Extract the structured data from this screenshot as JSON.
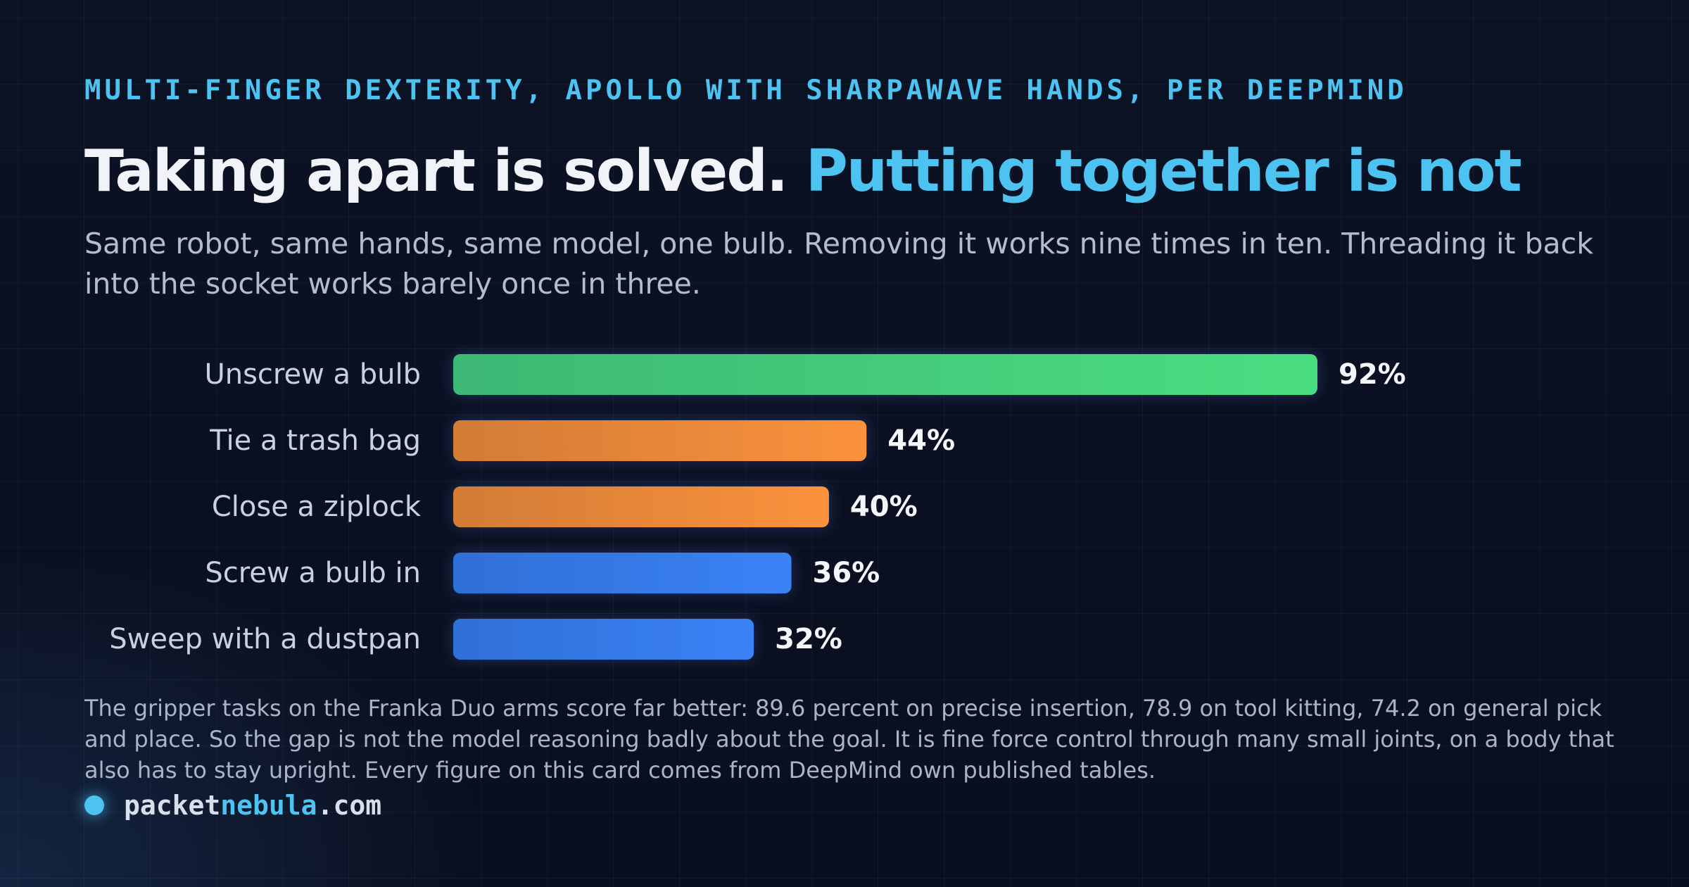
{
  "kicker": "MULTI-FINGER DEXTERITY, APOLLO WITH SHARPAWAVE HANDS, PER DEEPMIND",
  "title": {
    "part1": "Taking apart is solved.",
    "part2": "Putting together is not"
  },
  "subtitle": "Same robot, same hands, same model, one bulb. Removing it works nine times in ten. Threading it back into the socket works barely once in three.",
  "chart_data": {
    "type": "bar",
    "orientation": "horizontal",
    "categories": [
      "Unscrew a bulb",
      "Tie a trash bag",
      "Close a ziplock",
      "Screw a bulb in",
      "Sweep with a dustpan"
    ],
    "values": [
      92,
      44,
      40,
      36,
      32
    ],
    "value_labels": [
      "92%",
      "44%",
      "40%",
      "36%",
      "32%"
    ],
    "unit": "%",
    "xlim": [
      0,
      100
    ],
    "grid": false,
    "legend": "none",
    "bar_colors": [
      [
        "#3db874",
        "#4ade80"
      ],
      [
        "#d27b36",
        "#fb923c"
      ],
      [
        "#d27b36",
        "#fb923c"
      ],
      [
        "#2f6fd6",
        "#3b82f6"
      ],
      [
        "#2f6fd6",
        "#3b82f6"
      ]
    ]
  },
  "footnote": "The gripper tasks on the Franka Duo arms score far better: 89.6 percent on precise insertion, 78.9 on tool kitting, 74.2 on general pick and place. So the gap is not the model reasoning badly about the goal. It is fine force control through many small joints, on a body that also has to stay upright. Every figure on this card comes from DeepMind own published tables.",
  "brand": {
    "part1": "packet",
    "part2": "nebula",
    "part3": ".com"
  },
  "colors": {
    "background": "#0a1020",
    "accent": "#4cc3f0",
    "text": "#f1f3f8",
    "muted": "#b3bdcf"
  }
}
